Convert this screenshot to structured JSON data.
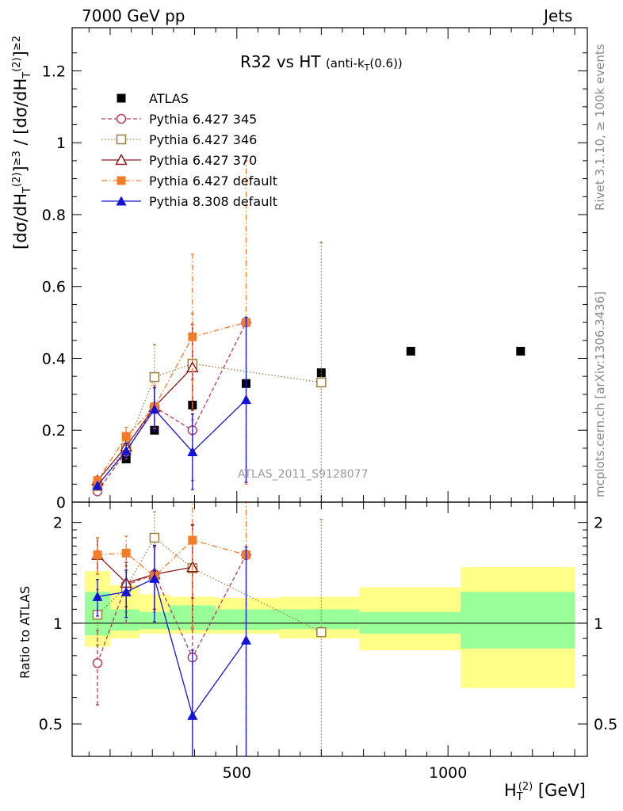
{
  "header": {
    "left": "7000 GeV pp",
    "right": "Jets",
    "title_main": "R32 vs HT",
    "title_sub": "(anti-k",
    "title_sub_idx": "T",
    "title_sub_end": "(0.6))"
  },
  "side": {
    "rivet": "Rivet 3.1.10, ≥ 100k events",
    "mcplots": "mcplots.cern.ch [arXiv:1306.3436]"
  },
  "watermark": "ATLAS_2011_S9128077",
  "ylabel_main": "[dσ/dH_T^(2)]≥3 / [dσ/dH_T^(2)]≥2",
  "ylabel_ratio": "Ratio to ATLAS",
  "xlabel": "H_T^(2) [GeV]",
  "legend": [
    {
      "name": "ATLAS"
    },
    {
      "name": "Pythia 6.427 345"
    },
    {
      "name": "Pythia 6.427 346"
    },
    {
      "name": "Pythia 6.427 370"
    },
    {
      "name": "Pythia 6.427 default"
    },
    {
      "name": "Pythia 8.308 default"
    }
  ],
  "chart_data": [
    {
      "type": "scatter",
      "panel": "main",
      "title": "R32 vs HT (anti-kT(0.6))",
      "xlabel": "H_T^(2) [GeV]",
      "ylabel": "[dσ/dH_T^(2)]≥3 / [dσ/dH_T^(2)]≥2",
      "xlim": [
        110,
        1330
      ],
      "ylim": [
        0,
        1.32
      ],
      "yticks": [
        0,
        0.2,
        0.4,
        0.6,
        0.8,
        1,
        1.2
      ],
      "yticklabels": [
        "0",
        "0.2",
        "0.4",
        "0.6",
        "0.8",
        "1",
        "1.2"
      ],
      "series": [
        {
          "name": "ATLAS",
          "color": "#000000",
          "marker": "filled-square",
          "line": "none",
          "x": [
            170,
            238,
            305,
            395,
            522,
            700,
            912,
            1172
          ],
          "y": [
            0.04,
            0.12,
            0.2,
            0.27,
            0.33,
            0.36,
            0.42,
            0.42
          ]
        },
        {
          "name": "Pythia 6.427 345",
          "color": "#b53a5c",
          "marker": "open-circle",
          "line": "dashed",
          "x": [
            170,
            238,
            305,
            395,
            522
          ],
          "y": [
            0.03,
            0.14,
            0.265,
            0.2,
            0.5
          ],
          "yerr": [
            0.01,
            0.02,
            0.06,
            0.14,
            0.01
          ]
        },
        {
          "name": "Pythia 6.427 346",
          "color": "#9c7c3c",
          "marker": "open-square",
          "line": "dotted",
          "x": [
            170,
            238,
            305,
            395,
            700
          ],
          "y": [
            0.045,
            0.15,
            0.348,
            0.385,
            0.333
          ],
          "yerr": [
            0.01,
            0.02,
            0.09,
            0.14,
            0.39
          ]
        },
        {
          "name": "Pythia 6.427 370",
          "color": "#8b1a1a",
          "marker": "open-triangle",
          "line": "solid",
          "x": [
            170,
            238,
            305,
            395
          ],
          "y": [
            0.06,
            0.155,
            0.265,
            0.375
          ],
          "yerr": [
            0.008,
            0.02,
            0.06,
            0.12
          ]
        },
        {
          "name": "Pythia 6.427 default",
          "color": "#f47c27",
          "marker": "filled-square",
          "line": "dashdot",
          "x": [
            170,
            238,
            305,
            395,
            522
          ],
          "y": [
            0.06,
            0.183,
            0.265,
            0.46,
            0.5
          ],
          "yerr": [
            0.008,
            0.025,
            0.06,
            0.23,
            0.45
          ]
        },
        {
          "name": "Pythia 8.308 default",
          "color": "#1414d8",
          "marker": "filled-triangle",
          "line": "solid",
          "x": [
            170,
            238,
            305,
            395,
            522
          ],
          "y": [
            0.046,
            0.143,
            0.258,
            0.14,
            0.285
          ],
          "yerr": [
            0.006,
            0.02,
            0.06,
            0.105,
            0.23
          ]
        }
      ]
    },
    {
      "type": "scatter",
      "panel": "ratio",
      "ylabel": "Ratio to ATLAS",
      "xlabel": "H_T^(2) [GeV]",
      "xlim": [
        110,
        1330
      ],
      "ylim": [
        0.4,
        2.3
      ],
      "ylog": true,
      "yticks": [
        0.5,
        1,
        2
      ],
      "yticklabels": [
        "0.5",
        "1",
        "2"
      ],
      "xticks": [
        500,
        1000
      ],
      "xticklabels": [
        "500",
        "1000"
      ],
      "bands": [
        {
          "x0": 140,
          "x1": 200,
          "inner": [
            0.92,
            1.24
          ],
          "outer": [
            0.85,
            1.43
          ]
        },
        {
          "x0": 200,
          "x1": 270,
          "inner": [
            0.95,
            1.1
          ],
          "outer": [
            0.9,
            1.3
          ]
        },
        {
          "x0": 270,
          "x1": 340,
          "inner": [
            0.96,
            1.08
          ],
          "outer": [
            0.93,
            1.22
          ]
        },
        {
          "x0": 340,
          "x1": 450,
          "inner": [
            0.955,
            1.13
          ],
          "outer": [
            0.93,
            1.2
          ]
        },
        {
          "x0": 450,
          "x1": 600,
          "inner": [
            0.955,
            1.1
          ],
          "outer": [
            0.93,
            1.19
          ]
        },
        {
          "x0": 600,
          "x1": 790,
          "inner": [
            0.96,
            1.1
          ],
          "outer": [
            0.9,
            1.2
          ]
        },
        {
          "x0": 790,
          "x1": 1030,
          "inner": [
            0.93,
            1.08
          ],
          "outer": [
            0.83,
            1.28
          ]
        },
        {
          "x0": 1030,
          "x1": 1300,
          "inner": [
            0.84,
            1.24
          ],
          "outer": [
            0.64,
            1.47
          ]
        }
      ],
      "series": [
        {
          "name": "Pythia 6.427 345",
          "color": "#b53a5c",
          "x": [
            170,
            238,
            305,
            395,
            522
          ],
          "y": [
            0.76,
            1.3,
            1.4,
            0.79,
            1.6
          ],
          "yerr": [
            0.19,
            0.3,
            0.3,
            0.4,
            0.05
          ]
        },
        {
          "name": "Pythia 6.427 346",
          "color": "#9c7c3c",
          "x": [
            170,
            238,
            305,
            395,
            700
          ],
          "y": [
            1.06,
            1.28,
            1.8,
            1.46,
            0.94
          ],
          "yerr": [
            0.2,
            0.2,
            0.35,
            0.5,
            1.1
          ]
        },
        {
          "name": "Pythia 6.427 370",
          "color": "#8b1a1a",
          "x": [
            170,
            238,
            305,
            395
          ],
          "y": [
            1.6,
            1.32,
            1.4,
            1.47
          ],
          "yerr": [
            0.2,
            0.2,
            0.3,
            0.5
          ]
        },
        {
          "name": "Pythia 6.427 default",
          "color": "#f47c27",
          "x": [
            170,
            238,
            305,
            395,
            522
          ],
          "y": [
            1.6,
            1.62,
            1.38,
            1.77,
            1.6
          ],
          "yerr": [
            0.2,
            0.2,
            0.3,
            0.8,
            1.2
          ]
        },
        {
          "name": "Pythia 8.308 default",
          "color": "#1414d8",
          "x": [
            170,
            238,
            305,
            395,
            522
          ],
          "y": [
            1.2,
            1.24,
            1.36,
            0.53,
            0.89
          ],
          "yerr": [
            0.15,
            0.2,
            0.35,
            0.3,
            0.8
          ]
        }
      ]
    }
  ]
}
